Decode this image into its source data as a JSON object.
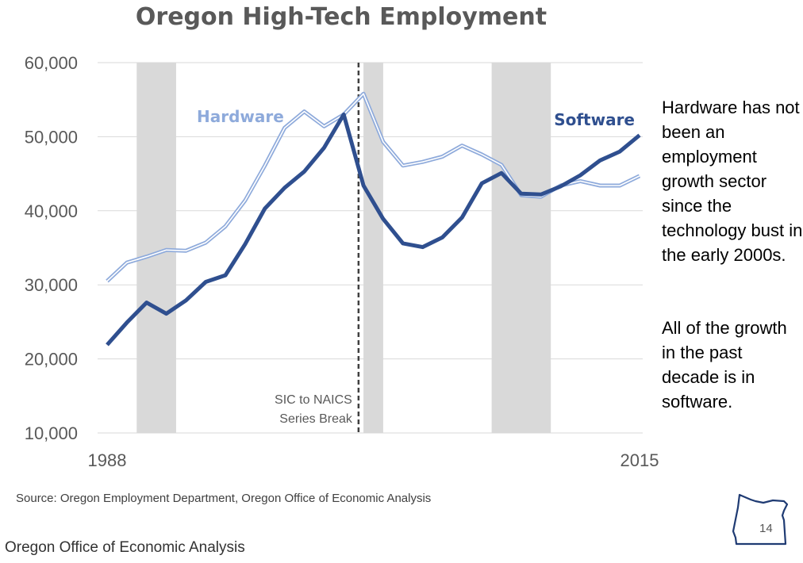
{
  "slide": {
    "notes": [
      "Hardware has not been an employment growth sector since the technology bust in the early 2000s.",
      "All of the growth in the past decade is in software."
    ],
    "source": "Source: Oregon Employment Department, Oregon Office of Economic Analysis",
    "footer": "Oregon Office of Economic Analysis",
    "page_number": "14"
  },
  "chart_data": {
    "type": "line",
    "title": "Oregon High-Tech Employment",
    "x": [
      1988,
      1989,
      1990,
      1991,
      1992,
      1993,
      1994,
      1995,
      1996,
      1997,
      1998,
      1999,
      2000,
      2001,
      2002,
      2003,
      2004,
      2005,
      2006,
      2007,
      2008,
      2009,
      2010,
      2011,
      2012,
      2013,
      2014,
      2015
    ],
    "x_tick_labels": [
      "1988",
      "2015"
    ],
    "xlim": [
      1988,
      2015
    ],
    "ylim": [
      10000,
      60000
    ],
    "y_ticks": [
      10000,
      20000,
      30000,
      40000,
      50000,
      60000
    ],
    "y_tick_labels": [
      "10,000",
      "20,000",
      "30,000",
      "40,000",
      "50,000",
      "60,000"
    ],
    "grid": "horizontal",
    "legend": "inline labels",
    "series": [
      {
        "name": "Hardware",
        "color": "#8eaadb",
        "style": "double-line",
        "values": [
          30500,
          33000,
          33800,
          34700,
          34600,
          35700,
          37900,
          41400,
          46100,
          51200,
          53400,
          51400,
          53000,
          55800,
          49300,
          46100,
          46600,
          47300,
          48800,
          47600,
          46200,
          42100,
          41900,
          43400,
          44000,
          43400,
          43400,
          44700
        ]
      },
      {
        "name": "Software",
        "color": "#2f4f8f",
        "style": "thick",
        "values": [
          21900,
          24900,
          27600,
          26100,
          27900,
          30400,
          31300,
          35500,
          40300,
          43100,
          45300,
          48500,
          53000,
          43400,
          38900,
          35600,
          35100,
          36400,
          39100,
          43700,
          45100,
          42300,
          42200,
          43300,
          44800,
          46800,
          48000,
          50200
        ]
      }
    ],
    "recession_bands": [
      [
        1989.5,
        1991.5
      ],
      [
        2001,
        2002
      ],
      [
        2007.5,
        2010.5
      ]
    ],
    "annotation": {
      "x": 2000.75,
      "lines": [
        "SIC to NAICS",
        "Series Break"
      ]
    }
  }
}
